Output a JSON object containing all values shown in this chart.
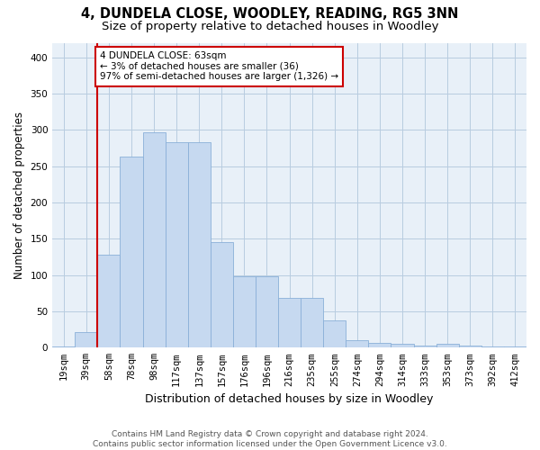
{
  "title": "4, DUNDELA CLOSE, WOODLEY, READING, RG5 3NN",
  "subtitle": "Size of property relative to detached houses in Woodley",
  "xlabel": "Distribution of detached houses by size in Woodley",
  "ylabel": "Number of detached properties",
  "categories": [
    "19sqm",
    "39sqm",
    "58sqm",
    "78sqm",
    "98sqm",
    "117sqm",
    "137sqm",
    "157sqm",
    "176sqm",
    "196sqm",
    "216sqm",
    "235sqm",
    "255sqm",
    "274sqm",
    "294sqm",
    "314sqm",
    "333sqm",
    "353sqm",
    "373sqm",
    "392sqm",
    "412sqm"
  ],
  "values": [
    1,
    22,
    128,
    263,
    297,
    283,
    283,
    145,
    98,
    98,
    68,
    68,
    37,
    10,
    7,
    5,
    3,
    5,
    3,
    2,
    1
  ],
  "bar_color": "#c6d9f0",
  "bar_edge_color": "#8ab0d8",
  "vline_x_index": 2,
  "vline_color": "#cc0000",
  "annotation_line1": "4 DUNDELA CLOSE: 63sqm",
  "annotation_line2": "← 3% of detached houses are smaller (36)",
  "annotation_line3": "97% of semi-detached houses are larger (1,326) →",
  "annotation_box_color": "#cc0000",
  "ylim": [
    0,
    420
  ],
  "yticks": [
    0,
    50,
    100,
    150,
    200,
    250,
    300,
    350,
    400
  ],
  "footer_line1": "Contains HM Land Registry data © Crown copyright and database right 2024.",
  "footer_line2": "Contains public sector information licensed under the Open Government Licence v3.0.",
  "plot_bg_color": "#e8f0f8",
  "fig_bg_color": "#ffffff",
  "grid_color": "#b8cce0",
  "title_fontsize": 10.5,
  "subtitle_fontsize": 9.5,
  "ylabel_fontsize": 8.5,
  "xlabel_fontsize": 9,
  "tick_fontsize": 7.5,
  "footer_fontsize": 6.5
}
